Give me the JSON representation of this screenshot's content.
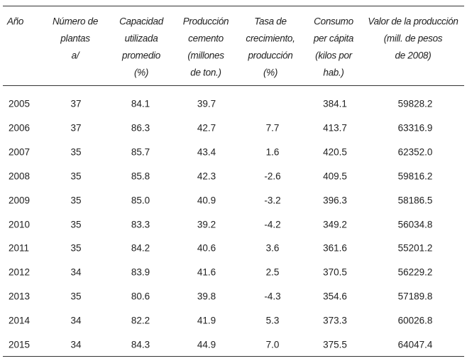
{
  "table": {
    "header": [
      [
        "Año"
      ],
      [
        "Número de",
        "plantas",
        "a/"
      ],
      [
        "Capacidad",
        "utilizada",
        "promedio",
        "(%)"
      ],
      [
        "Producción",
        "cemento",
        "(millones",
        "de ton.)"
      ],
      [
        "Tasa de",
        "crecimiento,",
        "producción",
        "(%)"
      ],
      [
        "Consumo",
        "per cápita",
        "(kilos por",
        "hab.)"
      ],
      [
        "Valor de la producción",
        "(mill. de pesos",
        "de 2008)"
      ]
    ],
    "rows": [
      [
        "2005",
        "37",
        "84.1",
        "39.7",
        null,
        "384.1",
        "59828.2"
      ],
      [
        "2006",
        "37",
        "86.3",
        "42.7",
        "7.7",
        "413.7",
        "63316.9"
      ],
      [
        "2007",
        "35",
        "85.7",
        "43.4",
        "1.6",
        "420.5",
        "62352.0"
      ],
      [
        "2008",
        "35",
        "85.8",
        "42.3",
        "-2.6",
        "409.5",
        "59816.2"
      ],
      [
        "2009",
        "35",
        "85.0",
        "40.9",
        "-3.2",
        "396.3",
        "58186.5"
      ],
      [
        "2010",
        "35",
        "83.3",
        "39.2",
        "-4.2",
        "349.2",
        "56034.8"
      ],
      [
        "2011",
        "35",
        "84.2",
        "40.6",
        "3.6",
        "361.6",
        "55201.2"
      ],
      [
        "2012",
        "34",
        "83.9",
        "41.6",
        "2.5",
        "370.5",
        "56229.2"
      ],
      [
        "2013",
        "35",
        "80.6",
        "39.8",
        "-4.3",
        "354.6",
        "57189.8"
      ],
      [
        "2014",
        "34",
        "82.2",
        "41.9",
        "5.3",
        "373.3",
        "60026.8"
      ],
      [
        "2015",
        "34",
        "84.3",
        "44.9",
        "7.0",
        "375.5",
        "64047.4"
      ]
    ]
  }
}
